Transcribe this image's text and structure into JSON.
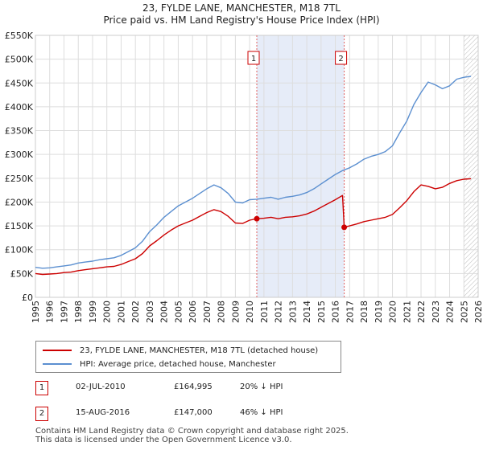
{
  "title": {
    "line1": "23, FYLDE LANE, MANCHESTER, M18 7TL",
    "line2": "Price paid vs. HM Land Registry's House Price Index (HPI)"
  },
  "legend": {
    "items": [
      {
        "label": "23, FYLDE LANE, MANCHESTER, M18 7TL (detached house)",
        "color": "#cc0000"
      },
      {
        "label": "HPI: Average price, detached house, Manchester",
        "color": "#5b8fd0"
      }
    ]
  },
  "transactions": [
    {
      "num": "1",
      "date": "02-JUL-2010",
      "price": "£164,995",
      "hpi": "20% ↓ HPI"
    },
    {
      "num": "2",
      "date": "15-AUG-2016",
      "price": "£147,000",
      "hpi": "46% ↓ HPI"
    }
  ],
  "footer": {
    "line1": "Contains HM Land Registry data © Crown copyright and database right 2025.",
    "line2": "This data is licensed under the Open Government Licence v3.0."
  },
  "chart_data": {
    "type": "line",
    "title": "23, FYLDE LANE, MANCHESTER, M18 7TL — Price paid vs. HM Land Registry's House Price Index (HPI)",
    "xlim": [
      1995,
      2026
    ],
    "ylim": [
      0,
      550000
    ],
    "x_ticks": [
      "1995",
      "1996",
      "1997",
      "1998",
      "1999",
      "2000",
      "2001",
      "2002",
      "2003",
      "2004",
      "2005",
      "2006",
      "2007",
      "2008",
      "2009",
      "2010",
      "2011",
      "2012",
      "2013",
      "2014",
      "2015",
      "2016",
      "2017",
      "2018",
      "2019",
      "2020",
      "2021",
      "2022",
      "2023",
      "2024",
      "2025",
      "2026"
    ],
    "y_ticks": [
      {
        "value": 0,
        "label": "£0"
      },
      {
        "value": 50000,
        "label": "£50K"
      },
      {
        "value": 100000,
        "label": "£100K"
      },
      {
        "value": 150000,
        "label": "£150K"
      },
      {
        "value": 200000,
        "label": "£200K"
      },
      {
        "value": 250000,
        "label": "£250K"
      },
      {
        "value": 300000,
        "label": "£300K"
      },
      {
        "value": 350000,
        "label": "£350K"
      },
      {
        "value": 400000,
        "label": "£400K"
      },
      {
        "value": 450000,
        "label": "£450K"
      },
      {
        "value": 500000,
        "label": "£500K"
      },
      {
        "value": 550000,
        "label": "£550K"
      }
    ],
    "grid": true,
    "shaded_range": [
      2010.5,
      2016.62
    ],
    "forecast_from": 2025.0,
    "markers": [
      {
        "label": "1",
        "x": 2010.5,
        "y": 164995
      },
      {
        "label": "2",
        "x": 2016.62,
        "y": 147000
      }
    ],
    "series": [
      {
        "name": "HPI: Average price, detached house, Manchester",
        "color": "#5b8fd0",
        "x": [
          1995,
          1995.5,
          1996,
          1996.5,
          1997,
          1997.5,
          1998,
          1998.5,
          1999,
          1999.5,
          2000,
          2000.5,
          2001,
          2001.5,
          2002,
          2002.5,
          2003,
          2003.5,
          2004,
          2004.5,
          2005,
          2005.5,
          2006,
          2006.5,
          2007,
          2007.5,
          2008,
          2008.5,
          2009,
          2009.5,
          2010,
          2010.5,
          2011,
          2011.5,
          2012,
          2012.5,
          2013,
          2013.5,
          2014,
          2014.5,
          2015,
          2015.5,
          2016,
          2016.5,
          2017,
          2017.5,
          2018,
          2018.5,
          2019,
          2019.5,
          2020,
          2020.5,
          2021,
          2021.5,
          2022,
          2022.5,
          2023,
          2023.5,
          2024,
          2024.5,
          2025,
          2025.5
        ],
        "values": [
          63000,
          61000,
          62000,
          64000,
          66000,
          68000,
          72000,
          74000,
          76000,
          79000,
          81000,
          83000,
          88000,
          96000,
          104000,
          118000,
          138000,
          152000,
          168000,
          180000,
          192000,
          200000,
          208000,
          218000,
          228000,
          236000,
          230000,
          218000,
          200000,
          198000,
          205000,
          206000,
          208000,
          210000,
          206000,
          210000,
          212000,
          215000,
          220000,
          228000,
          238000,
          248000,
          258000,
          266000,
          272000,
          280000,
          290000,
          296000,
          300000,
          306000,
          318000,
          345000,
          370000,
          405000,
          430000,
          452000,
          446000,
          438000,
          444000,
          458000,
          462000,
          464000
        ]
      },
      {
        "name": "23, FYLDE LANE, MANCHESTER, M18 7TL (detached house)",
        "color": "#cc0000",
        "x": [
          1995,
          1995.5,
          1996,
          1996.5,
          1997,
          1997.5,
          1998,
          1998.5,
          1999,
          1999.5,
          2000,
          2000.5,
          2001,
          2001.5,
          2002,
          2002.5,
          2003,
          2003.5,
          2004,
          2004.5,
          2005,
          2005.5,
          2006,
          2006.5,
          2007,
          2007.5,
          2008,
          2008.5,
          2009,
          2009.5,
          2010,
          2010.5,
          2011,
          2011.5,
          2012,
          2012.5,
          2013,
          2013.5,
          2014,
          2014.5,
          2015,
          2015.5,
          2016,
          2016.5,
          2016.62,
          2017,
          2017.5,
          2018,
          2018.5,
          2019,
          2019.5,
          2020,
          2020.5,
          2021,
          2021.5,
          2022,
          2022.5,
          2023,
          2023.5,
          2024,
          2024.5,
          2025,
          2025.5
        ],
        "values": [
          50000,
          48000,
          49000,
          50000,
          52000,
          53000,
          56000,
          58000,
          60000,
          62000,
          64000,
          65000,
          69000,
          75000,
          81000,
          92000,
          108000,
          119000,
          131000,
          141000,
          150000,
          156000,
          162000,
          170000,
          178000,
          184000,
          180000,
          170000,
          156000,
          155000,
          162000,
          164995,
          166000,
          168000,
          165000,
          168000,
          169000,
          171000,
          175000,
          181000,
          189000,
          197000,
          205000,
          214000,
          147000,
          150000,
          154000,
          159000,
          162000,
          165000,
          168000,
          174000,
          188000,
          203000,
          222000,
          236000,
          233000,
          228000,
          231000,
          239000,
          245000,
          248000,
          249000
        ]
      }
    ]
  }
}
